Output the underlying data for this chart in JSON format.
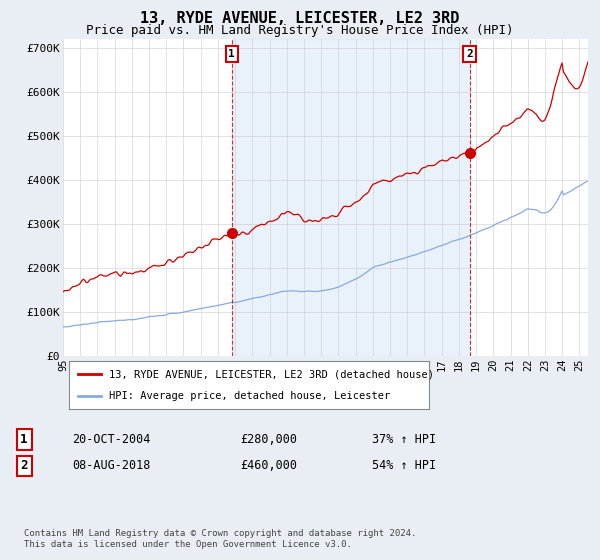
{
  "title": "13, RYDE AVENUE, LEICESTER, LE2 3RD",
  "subtitle": "Price paid vs. HM Land Registry's House Price Index (HPI)",
  "title_fontsize": 11,
  "subtitle_fontsize": 9,
  "background_color": "#e8eef4",
  "plot_bg_color": "#ffffff",
  "fill_color": "#ddeeff",
  "red_line_color": "#cc0000",
  "blue_line_color": "#88aadd",
  "grid_color": "#cccccc",
  "ylim": [
    0,
    720000
  ],
  "yticks": [
    0,
    100000,
    200000,
    300000,
    400000,
    500000,
    600000,
    700000
  ],
  "ytick_labels": [
    "£0",
    "£100K",
    "£200K",
    "£300K",
    "£400K",
    "£500K",
    "£600K",
    "£700K"
  ],
  "transaction1": {
    "date": "20-OCT-2004",
    "price": 280000,
    "hpi_pct": "37% ↑ HPI",
    "label": "1",
    "x_year": 2004.8
  },
  "transaction2": {
    "date": "08-AUG-2018",
    "price": 460000,
    "hpi_pct": "54% ↑ HPI",
    "label": "2",
    "x_year": 2018.62
  },
  "legend_line1": "13, RYDE AVENUE, LEICESTER, LE2 3RD (detached house)",
  "legend_line2": "HPI: Average price, detached house, Leicester",
  "footer": "Contains HM Land Registry data © Crown copyright and database right 2024.\nThis data is licensed under the Open Government Licence v3.0.",
  "xlim_start": 1995,
  "xlim_end": 2025.5
}
